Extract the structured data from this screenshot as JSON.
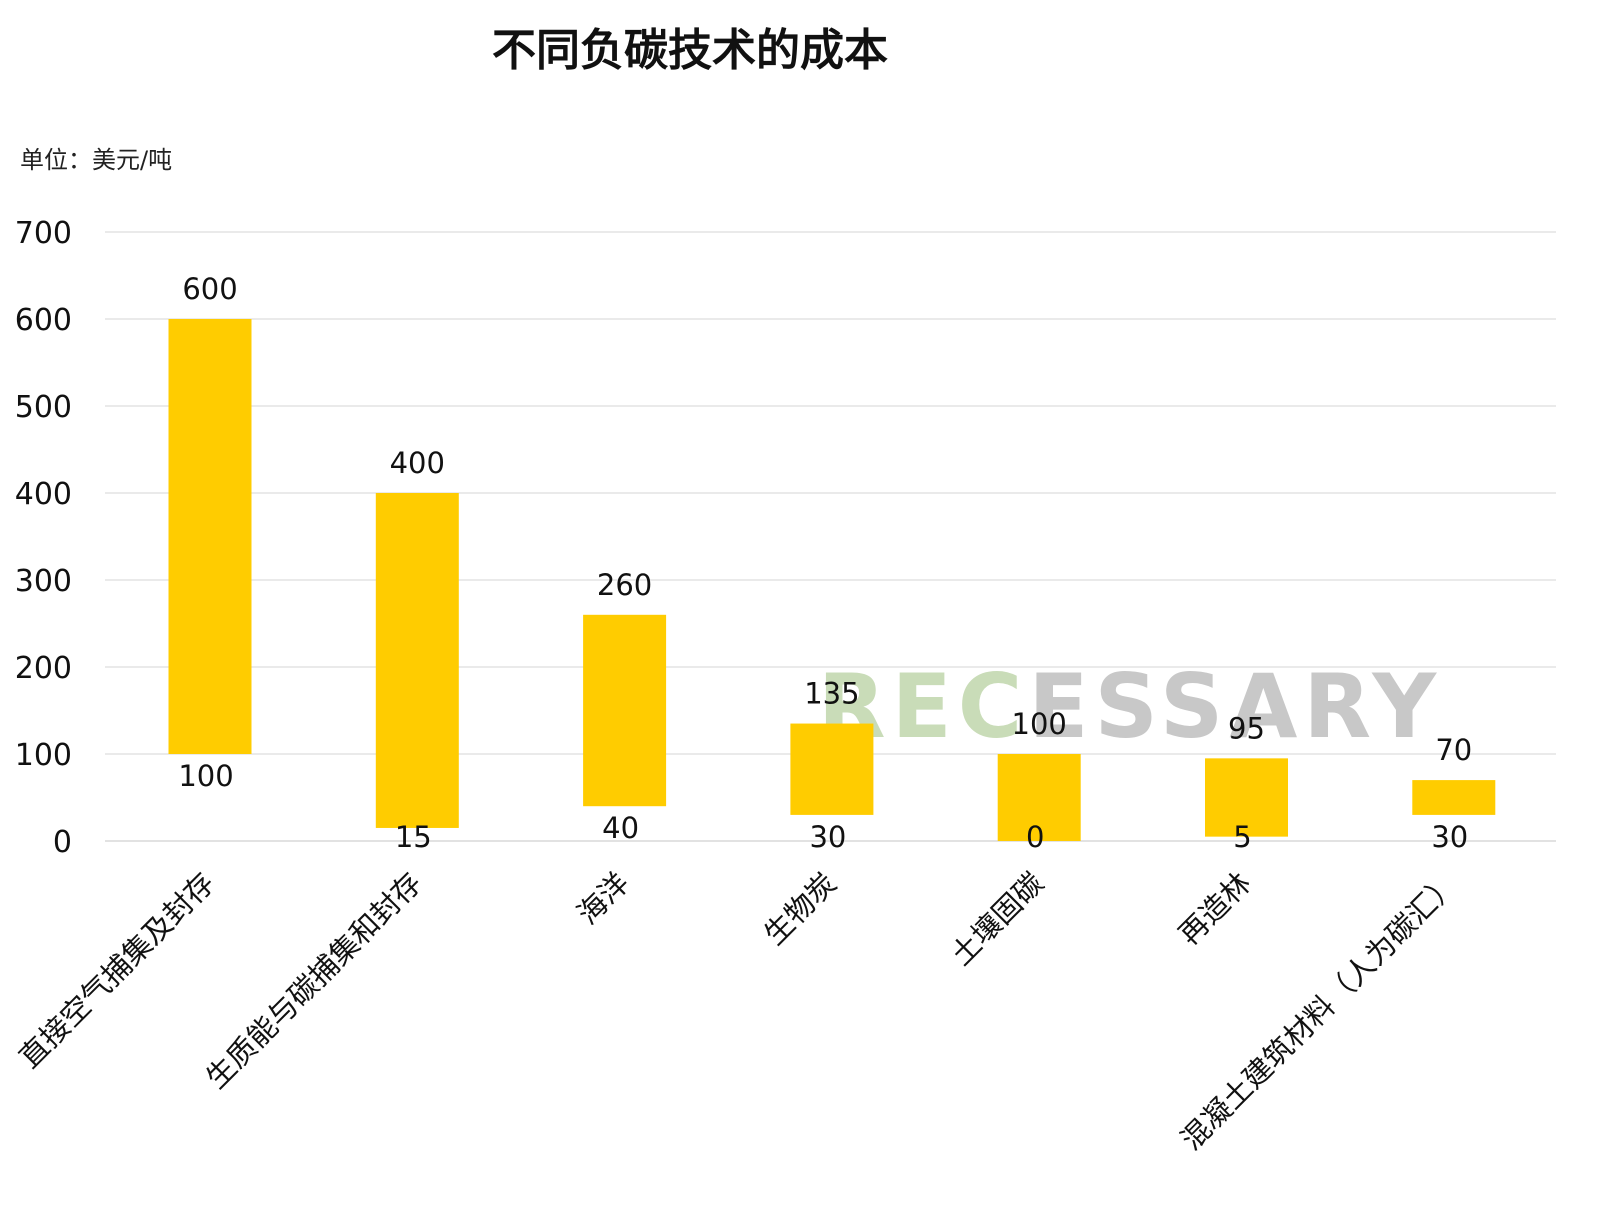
{
  "chart_data": {
    "type": "bar",
    "subtype": "floating-range",
    "title": "不同负碳技术的成本",
    "unit_label": "单位：美元/吨",
    "categories": [
      "直接空气捕集及封存",
      "生质能与碳捕集和封存",
      "海洋",
      "生物炭",
      "土壤固碳",
      "再造林",
      "混凝土建筑材料（人为碳汇）"
    ],
    "series": [
      {
        "low": [
          100,
          15,
          40,
          30,
          0,
          5,
          30
        ]
      },
      {
        "high": [
          600,
          400,
          260,
          135,
          100,
          95,
          70
        ]
      }
    ],
    "low_values": [
      100,
      15,
      40,
      30,
      0,
      5,
      30
    ],
    "high_values": [
      600,
      400,
      260,
      135,
      100,
      95,
      70
    ],
    "y_ticks": [
      0,
      100,
      200,
      300,
      400,
      500,
      600,
      700
    ],
    "ylim": [
      0,
      700
    ],
    "grid": true,
    "legend": "none",
    "bar_color": "#FFCC00"
  },
  "watermark": {
    "prefix": "REC",
    "suffix": "ESSARY",
    "prefix_color": "#c9dcb8",
    "suffix_color": "#c8c8c8"
  }
}
